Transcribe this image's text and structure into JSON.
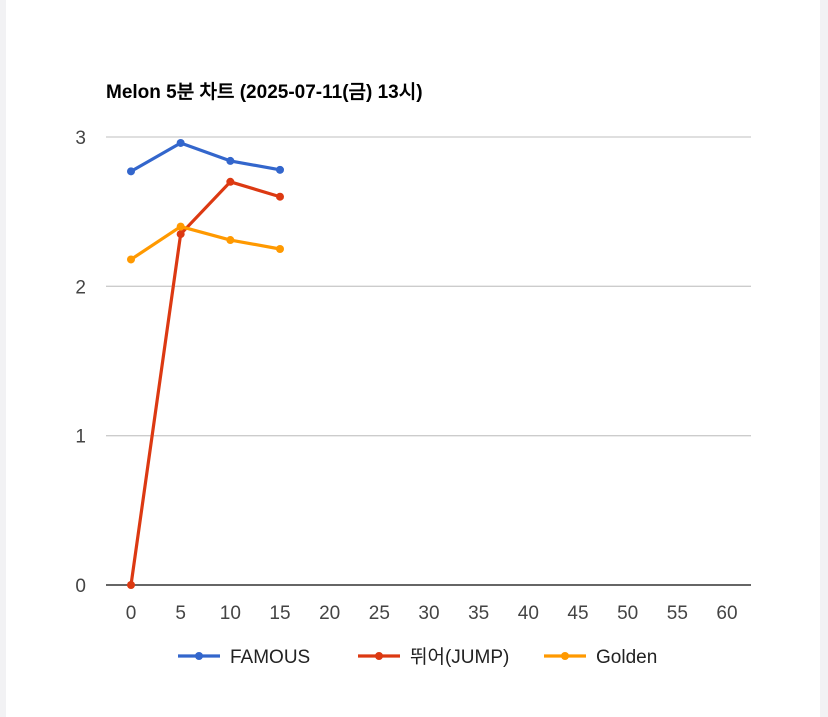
{
  "chart_data": {
    "type": "line",
    "title": "Melon 5분 차트 (2025-07-11(금) 13시)",
    "xlabel": "",
    "ylabel": "",
    "xlim": [
      0,
      60
    ],
    "ylim": [
      0,
      3
    ],
    "x_ticks": [
      "0",
      "5",
      "10",
      "15",
      "20",
      "25",
      "30",
      "35",
      "40",
      "45",
      "50",
      "55",
      "60"
    ],
    "y_ticks": [
      "0",
      "1",
      "2",
      "3"
    ],
    "grid": true,
    "legend_position": "bottom",
    "series": [
      {
        "name": "FAMOUS",
        "color": "#3366cc",
        "x": [
          0,
          5,
          10,
          15
        ],
        "y": [
          2.77,
          2.96,
          2.84,
          2.78
        ]
      },
      {
        "name": "뛰어(JUMP)",
        "color": "#dc3912",
        "x": [
          0,
          5,
          10,
          15
        ],
        "y": [
          0.0,
          2.35,
          2.7,
          2.6
        ]
      },
      {
        "name": "Golden",
        "color": "#ff9900",
        "x": [
          0,
          5,
          10,
          15
        ],
        "y": [
          2.18,
          2.4,
          2.31,
          2.25
        ]
      }
    ]
  }
}
